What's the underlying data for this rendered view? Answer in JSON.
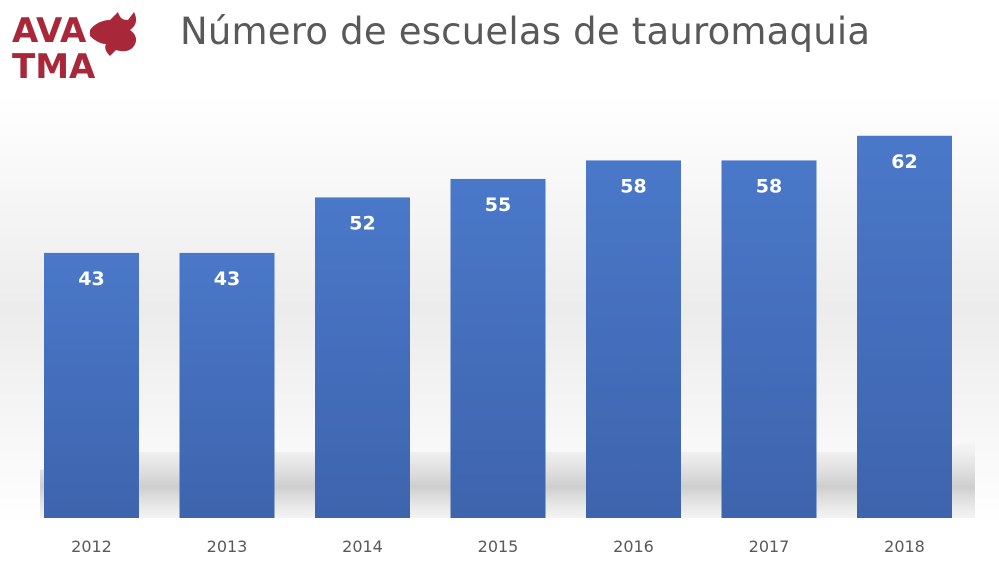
{
  "title": "Número de escuelas de tauromaquia",
  "logo": {
    "lines": [
      "AVA",
      "TMA"
    ],
    "color": "#a8283a"
  },
  "chart_data": {
    "type": "bar",
    "categories": [
      "2012",
      "2013",
      "2014",
      "2015",
      "2016",
      "2017",
      "2018"
    ],
    "values": [
      43,
      43,
      52,
      55,
      58,
      58,
      62
    ],
    "title": "Número de escuelas de tauromaquia",
    "xlabel": "",
    "ylabel": "",
    "ylim": [
      0,
      70
    ],
    "grid": false,
    "legend": "none",
    "data_labels": true,
    "bar_color": "#4472c4"
  }
}
